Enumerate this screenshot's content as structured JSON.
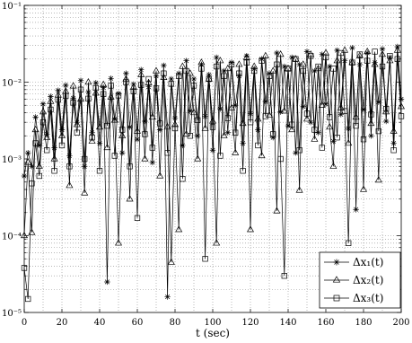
{
  "chart_data": {
    "type": "line",
    "xlabel": "t (sec)",
    "xlim": [
      0,
      200
    ],
    "ylim": [
      1e-05,
      0.1
    ],
    "yscale": "log",
    "grid": true,
    "legend_position": "bottom-right",
    "xticks": [
      0,
      20,
      40,
      60,
      80,
      100,
      120,
      140,
      160,
      180,
      200
    ],
    "yticks": [
      {
        "value": 0.1,
        "label": "10⁻¹"
      },
      {
        "value": 0.01,
        "label": "10⁻²"
      },
      {
        "value": 0.001,
        "label": "10⁻³"
      },
      {
        "value": 0.0001,
        "label": "10⁻⁴"
      },
      {
        "value": 1e-05,
        "label": "10⁻⁵"
      }
    ],
    "x": [
      0,
      2,
      4,
      6,
      8,
      10,
      12,
      14,
      16,
      18,
      20,
      22,
      24,
      26,
      28,
      30,
      32,
      34,
      36,
      38,
      40,
      42,
      44,
      46,
      48,
      50,
      52,
      54,
      56,
      58,
      60,
      62,
      64,
      66,
      68,
      70,
      72,
      74,
      76,
      78,
      80,
      82,
      84,
      86,
      88,
      90,
      92,
      94,
      96,
      98,
      100,
      102,
      104,
      106,
      108,
      110,
      112,
      114,
      116,
      118,
      120,
      122,
      124,
      126,
      128,
      130,
      132,
      134,
      136,
      138,
      140,
      142,
      144,
      146,
      148,
      150,
      152,
      154,
      156,
      158,
      160,
      162,
      164,
      166,
      168,
      170,
      172,
      174,
      176,
      178,
      180,
      182,
      184,
      186,
      188,
      190,
      192,
      194,
      196,
      198,
      200
    ],
    "series": [
      {
        "name": "Δx₁(t)",
        "marker": "asterisk",
        "color": "#000000",
        "values": [
          0.0006,
          0.0012,
          0.0008,
          0.0035,
          0.0015,
          0.0052,
          0.0021,
          0.0065,
          0.0014,
          0.0078,
          0.0024,
          0.0091,
          0.0011,
          0.0062,
          0.003,
          0.0105,
          0.0008,
          0.0074,
          0.0022,
          0.0098,
          0.0016,
          0.0085,
          2.5e-05,
          0.0112,
          0.0033,
          0.0071,
          0.0012,
          0.013,
          0.0026,
          0.0094,
          0.0018,
          0.0145,
          0.0031,
          0.0087,
          0.0009,
          0.012,
          0.0024,
          0.0165,
          1.6e-05,
          0.011,
          0.0034,
          0.013,
          0.0015,
          0.019,
          0.0042,
          0.011,
          0.002,
          0.017,
          0.0036,
          0.0125,
          0.0013,
          0.021,
          0.0045,
          0.014,
          0.0022,
          0.018,
          0.005,
          0.012,
          0.0016,
          0.022,
          0.0039,
          0.015,
          0.0024,
          0.02,
          0.0056,
          0.013,
          0.0019,
          0.024,
          0.0041,
          0.016,
          0.0027,
          0.021,
          0.0012,
          0.017,
          0.0048,
          0.025,
          0.003,
          0.014,
          0.0022,
          0.023,
          0.0052,
          0.016,
          0.0017,
          0.026,
          0.0038,
          0.019,
          0.0025,
          0.028,
          0.00022,
          0.017,
          0.0044,
          0.024,
          0.002,
          0.018,
          0.0055,
          0.027,
          0.0031,
          0.021,
          0.0016,
          0.029,
          0.006
        ]
      },
      {
        "name": "Δx₂(t)",
        "marker": "triangle",
        "color": "#000000",
        "values": [
          0.0001,
          0.0009,
          0.00011,
          0.0024,
          0.0008,
          0.0041,
          0.0019,
          0.0056,
          0.001,
          0.0068,
          0.002,
          0.0076,
          0.00045,
          0.0089,
          0.0028,
          0.006,
          0.00036,
          0.01,
          0.0017,
          0.0072,
          0.0026,
          0.0093,
          0.0014,
          0.0064,
          0.0032,
          8e-05,
          0.002,
          0.011,
          0.0003,
          0.0086,
          0.0023,
          0.0125,
          0.001,
          0.0098,
          0.0035,
          0.014,
          0.0006,
          0.0115,
          0.0026,
          4.5e-05,
          0.0028,
          0.00012,
          0.016,
          0.0021,
          0.013,
          0.004,
          0.001,
          0.018,
          0.0025,
          0.011,
          0.0031,
          8e-05,
          0.019,
          0.002,
          0.015,
          0.0046,
          0.0012,
          0.017,
          0.0029,
          0.021,
          0.00012,
          0.016,
          0.0033,
          0.0011,
          0.022,
          0.0037,
          0.014,
          0.00021,
          0.023,
          0.0042,
          0.015,
          0.0024,
          0.02,
          0.00039,
          0.017,
          0.0033,
          0.023,
          0.0018,
          0.015,
          0.005,
          0.024,
          0.0026,
          0.0008,
          0.019,
          0.0046,
          0.026,
          0.0016,
          0.018,
          0.0035,
          0.022,
          0.0004,
          0.025,
          0.0029,
          0.017,
          0.00053,
          0.023,
          0.0041,
          0.019,
          0.0023,
          0.026,
          0.0048
        ]
      },
      {
        "name": "Δx₃(t)",
        "marker": "square",
        "color": "#000000",
        "values": [
          3.8e-05,
          1.5e-05,
          0.00048,
          0.0016,
          0.0006,
          0.003,
          0.0013,
          0.0044,
          0.0007,
          0.0059,
          0.0015,
          0.0066,
          0.0008,
          0.0054,
          0.0022,
          0.008,
          0.001,
          0.0061,
          0.0019,
          0.0084,
          0.0007,
          0.007,
          0.0027,
          0.009,
          0.0011,
          0.0067,
          0.0024,
          0.01,
          0.0008,
          0.0076,
          0.00017,
          0.0092,
          0.0021,
          0.011,
          0.0014,
          0.0083,
          0.0029,
          0.013,
          0.0012,
          0.0095,
          0.0025,
          0.012,
          0.00055,
          0.014,
          0.002,
          0.009,
          0.0032,
          0.015,
          5e-05,
          0.011,
          0.0026,
          0.016,
          0.0011,
          0.012,
          0.0034,
          0.017,
          0.0022,
          0.013,
          0.0007,
          0.018,
          0.003,
          0.014,
          0.0015,
          0.019,
          0.0036,
          0.012,
          0.0021,
          0.017,
          0.001,
          3e-05,
          0.015,
          0.0028,
          0.02,
          0.0013,
          0.014,
          0.0039,
          0.022,
          0.0024,
          0.016,
          0.0014,
          0.021,
          0.0035,
          0.015,
          0.0019,
          0.024,
          0.0042,
          8e-05,
          0.018,
          0.0027,
          0.023,
          0.0018,
          0.019,
          0.0038,
          0.025,
          0.0023,
          0.016,
          0.0045,
          0.022,
          0.0013,
          0.02,
          0.0036
        ]
      }
    ]
  }
}
